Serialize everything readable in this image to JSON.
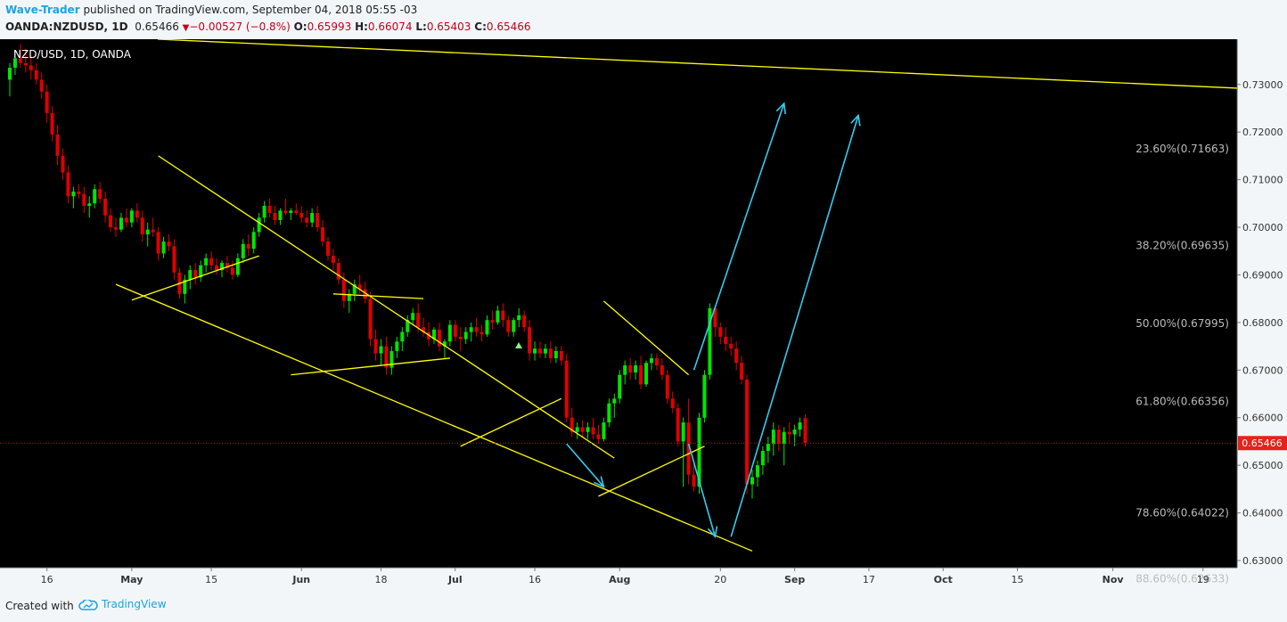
{
  "header": {
    "author": "Wave-Trader",
    "published": " published on TradingView.com, September 04, 2018 05:55 -03",
    "symbol": "OANDA:NZDUSD, 1D",
    "price": "0.65466",
    "change": "−0.00527 (−0.8%)",
    "o_label": "O:",
    "o_value": "0.65993",
    "h_label": "H:",
    "h_value": "0.66074",
    "l_label": "L:",
    "l_value": "0.65403",
    "c_label": "C:",
    "c_value": "0.65466"
  },
  "footer": {
    "created": "Created with",
    "brand": "TradingView"
  },
  "colors": {
    "background": "#000000",
    "up": "#00e600",
    "down": "#e00000",
    "trendline": "#ffff00",
    "arrow": "#33ccee",
    "price_line": "#e00000",
    "axis_bg": "#f3f6f8"
  },
  "chart_data": {
    "type": "candlestick",
    "title": "NZD/USD, 1D, OANDA",
    "last_price_label": "0.65466",
    "last_price": 0.65466,
    "ylim": [
      0.6285,
      0.7395
    ],
    "yticks": [
      {
        "label": "0.73000",
        "value": 0.73
      },
      {
        "label": "0.72000",
        "value": 0.72
      },
      {
        "label": "0.71000",
        "value": 0.71
      },
      {
        "label": "0.70000",
        "value": 0.7
      },
      {
        "label": "0.69000",
        "value": 0.69
      },
      {
        "label": "0.68000",
        "value": 0.68
      },
      {
        "label": "0.67000",
        "value": 0.67
      },
      {
        "label": "0.66000",
        "value": 0.66
      },
      {
        "label": "0.65000",
        "value": 0.65
      },
      {
        "label": "0.64000",
        "value": 0.64
      },
      {
        "label": "0.63000",
        "value": 0.63
      }
    ],
    "fib_levels": [
      {
        "label": "23.60%(0.71663)",
        "value": 0.71663
      },
      {
        "label": "38.20%(0.69635)",
        "value": 0.69635
      },
      {
        "label": "50.00%(0.67995)",
        "value": 0.67995
      },
      {
        "label": "61.80%(0.66356)",
        "value": 0.66356
      },
      {
        "label": "78.60%(0.64022)",
        "value": 0.64022
      },
      {
        "label": "88.60%(0.62633)",
        "value": 0.62633
      }
    ],
    "xticks": [
      {
        "label": "16",
        "bar": 7
      },
      {
        "label": "May",
        "bar": 23
      },
      {
        "label": "15",
        "bar": 38
      },
      {
        "label": "Jun",
        "bar": 55
      },
      {
        "label": "18",
        "bar": 70
      },
      {
        "label": "Jul",
        "bar": 84
      },
      {
        "label": "16",
        "bar": 99
      },
      {
        "label": "Aug",
        "bar": 115
      },
      {
        "label": "20",
        "bar": 134
      },
      {
        "label": "Sep",
        "bar": 148
      },
      {
        "label": "17",
        "bar": 162
      },
      {
        "label": "Oct",
        "bar": 176
      },
      {
        "label": "15",
        "bar": 190
      },
      {
        "label": "Nov",
        "bar": 208
      },
      {
        "label": "19",
        "bar": 225
      }
    ],
    "candles": [
      [
        0.731,
        0.7345,
        0.7275,
        0.7335
      ],
      [
        0.7335,
        0.737,
        0.732,
        0.7355
      ],
      [
        0.7355,
        0.7385,
        0.7335,
        0.7345
      ],
      [
        0.7345,
        0.7375,
        0.7325,
        0.734
      ],
      [
        0.734,
        0.736,
        0.731,
        0.733
      ],
      [
        0.733,
        0.7345,
        0.73,
        0.731
      ],
      [
        0.731,
        0.7325,
        0.727,
        0.7285
      ],
      [
        0.7285,
        0.73,
        0.722,
        0.724
      ],
      [
        0.724,
        0.7255,
        0.718,
        0.7195
      ],
      [
        0.7195,
        0.7215,
        0.713,
        0.715
      ],
      [
        0.715,
        0.7165,
        0.71,
        0.7115
      ],
      [
        0.7115,
        0.713,
        0.705,
        0.7065
      ],
      [
        0.7065,
        0.7085,
        0.704,
        0.7075
      ],
      [
        0.7075,
        0.709,
        0.706,
        0.707
      ],
      [
        0.707,
        0.7085,
        0.703,
        0.7045
      ],
      [
        0.7045,
        0.7065,
        0.702,
        0.705
      ],
      [
        0.705,
        0.709,
        0.704,
        0.708
      ],
      [
        0.708,
        0.7095,
        0.705,
        0.706
      ],
      [
        0.706,
        0.7075,
        0.701,
        0.7025
      ],
      [
        0.7025,
        0.704,
        0.699,
        0.7
      ],
      [
        0.7,
        0.702,
        0.698,
        0.6995
      ],
      [
        0.6995,
        0.703,
        0.699,
        0.702
      ],
      [
        0.702,
        0.704,
        0.7,
        0.701
      ],
      [
        0.701,
        0.704,
        0.7,
        0.7035
      ],
      [
        0.7035,
        0.705,
        0.701,
        0.702
      ],
      [
        0.702,
        0.7035,
        0.697,
        0.6985
      ],
      [
        0.6985,
        0.701,
        0.696,
        0.6995
      ],
      [
        0.6995,
        0.702,
        0.698,
        0.699
      ],
      [
        0.699,
        0.7,
        0.693,
        0.6945
      ],
      [
        0.6945,
        0.698,
        0.6935,
        0.697
      ],
      [
        0.697,
        0.6985,
        0.695,
        0.696
      ],
      [
        0.696,
        0.6975,
        0.689,
        0.6905
      ],
      [
        0.6905,
        0.6915,
        0.685,
        0.686
      ],
      [
        0.686,
        0.69,
        0.684,
        0.689
      ],
      [
        0.689,
        0.692,
        0.687,
        0.691
      ],
      [
        0.691,
        0.6925,
        0.688,
        0.6895
      ],
      [
        0.6895,
        0.693,
        0.6885,
        0.692
      ],
      [
        0.692,
        0.6945,
        0.6905,
        0.6935
      ],
      [
        0.6935,
        0.695,
        0.691,
        0.692
      ],
      [
        0.692,
        0.6935,
        0.69,
        0.691
      ],
      [
        0.691,
        0.693,
        0.6895,
        0.6925
      ],
      [
        0.6925,
        0.694,
        0.6905,
        0.6915
      ],
      [
        0.6915,
        0.693,
        0.689,
        0.69
      ],
      [
        0.69,
        0.6945,
        0.6895,
        0.6935
      ],
      [
        0.6935,
        0.6975,
        0.6925,
        0.6965
      ],
      [
        0.6965,
        0.6985,
        0.694,
        0.6955
      ],
      [
        0.6955,
        0.7,
        0.6945,
        0.699
      ],
      [
        0.699,
        0.703,
        0.698,
        0.702
      ],
      [
        0.702,
        0.7055,
        0.701,
        0.7045
      ],
      [
        0.7045,
        0.706,
        0.702,
        0.703
      ],
      [
        0.703,
        0.7045,
        0.7005,
        0.7015
      ],
      [
        0.7015,
        0.704,
        0.7005,
        0.7035
      ],
      [
        0.7035,
        0.706,
        0.7025,
        0.703
      ],
      [
        0.703,
        0.704,
        0.7015,
        0.7035
      ],
      [
        0.7035,
        0.705,
        0.7025,
        0.703
      ],
      [
        0.703,
        0.7045,
        0.701,
        0.702
      ],
      [
        0.702,
        0.7035,
        0.7,
        0.701
      ],
      [
        0.701,
        0.704,
        0.7,
        0.703
      ],
      [
        0.703,
        0.7045,
        0.699,
        0.7
      ],
      [
        0.7,
        0.7015,
        0.696,
        0.697
      ],
      [
        0.697,
        0.698,
        0.693,
        0.694
      ],
      [
        0.694,
        0.6955,
        0.691,
        0.6925
      ],
      [
        0.6925,
        0.6935,
        0.688,
        0.689
      ],
      [
        0.689,
        0.6905,
        0.683,
        0.6845
      ],
      [
        0.6845,
        0.687,
        0.682,
        0.686
      ],
      [
        0.686,
        0.689,
        0.6845,
        0.688
      ],
      [
        0.688,
        0.69,
        0.686,
        0.687
      ],
      [
        0.687,
        0.6885,
        0.684,
        0.685
      ],
      [
        0.685,
        0.6865,
        0.675,
        0.6765
      ],
      [
        0.6765,
        0.6785,
        0.672,
        0.6735
      ],
      [
        0.6735,
        0.6765,
        0.671,
        0.675
      ],
      [
        0.675,
        0.677,
        0.669,
        0.6705
      ],
      [
        0.6705,
        0.675,
        0.669,
        0.674
      ],
      [
        0.674,
        0.677,
        0.6725,
        0.676
      ],
      [
        0.676,
        0.679,
        0.674,
        0.678
      ],
      [
        0.678,
        0.6815,
        0.677,
        0.6805
      ],
      [
        0.6805,
        0.683,
        0.6795,
        0.682
      ],
      [
        0.682,
        0.684,
        0.678,
        0.679
      ],
      [
        0.679,
        0.681,
        0.677,
        0.678
      ],
      [
        0.678,
        0.68,
        0.675,
        0.6765
      ],
      [
        0.6765,
        0.679,
        0.6755,
        0.6785
      ],
      [
        0.6785,
        0.68,
        0.674,
        0.675
      ],
      [
        0.675,
        0.6765,
        0.6725,
        0.676
      ],
      [
        0.676,
        0.6805,
        0.675,
        0.6795
      ],
      [
        0.6795,
        0.6805,
        0.676,
        0.677
      ],
      [
        0.677,
        0.679,
        0.674,
        0.6765
      ],
      [
        0.6765,
        0.679,
        0.6755,
        0.678
      ],
      [
        0.678,
        0.68,
        0.676,
        0.679
      ],
      [
        0.679,
        0.681,
        0.677,
        0.678
      ],
      [
        0.678,
        0.6795,
        0.676,
        0.6775
      ],
      [
        0.6775,
        0.6815,
        0.677,
        0.6805
      ],
      [
        0.6805,
        0.6825,
        0.6785,
        0.68
      ],
      [
        0.68,
        0.6835,
        0.6795,
        0.6825
      ],
      [
        0.6825,
        0.684,
        0.679,
        0.6805
      ],
      [
        0.6805,
        0.6815,
        0.677,
        0.678
      ],
      [
        0.678,
        0.681,
        0.677,
        0.6805
      ],
      [
        0.6805,
        0.683,
        0.679,
        0.6815
      ],
      [
        0.6815,
        0.6825,
        0.678,
        0.679
      ],
      [
        0.679,
        0.6805,
        0.672,
        0.6735
      ],
      [
        0.6735,
        0.676,
        0.672,
        0.6745
      ],
      [
        0.6745,
        0.676,
        0.6725,
        0.6735
      ],
      [
        0.6735,
        0.6755,
        0.6725,
        0.6745
      ],
      [
        0.6745,
        0.676,
        0.6715,
        0.6725
      ],
      [
        0.6725,
        0.675,
        0.6715,
        0.674
      ],
      [
        0.674,
        0.675,
        0.671,
        0.672
      ],
      [
        0.672,
        0.6735,
        0.659,
        0.66
      ],
      [
        0.66,
        0.662,
        0.656,
        0.657
      ],
      [
        0.657,
        0.659,
        0.6555,
        0.658
      ],
      [
        0.658,
        0.6595,
        0.656,
        0.657
      ],
      [
        0.657,
        0.659,
        0.6555,
        0.658
      ],
      [
        0.658,
        0.66,
        0.6555,
        0.6565
      ],
      [
        0.6565,
        0.6585,
        0.6545,
        0.6555
      ],
      [
        0.6555,
        0.66,
        0.655,
        0.659
      ],
      [
        0.659,
        0.664,
        0.658,
        0.663
      ],
      [
        0.663,
        0.665,
        0.66,
        0.664
      ],
      [
        0.664,
        0.67,
        0.663,
        0.669
      ],
      [
        0.669,
        0.672,
        0.667,
        0.671
      ],
      [
        0.671,
        0.6725,
        0.668,
        0.6695
      ],
      [
        0.6695,
        0.672,
        0.668,
        0.671
      ],
      [
        0.671,
        0.673,
        0.666,
        0.667
      ],
      [
        0.667,
        0.672,
        0.6665,
        0.6715
      ],
      [
        0.6715,
        0.6735,
        0.67,
        0.6725
      ],
      [
        0.6725,
        0.6735,
        0.67,
        0.671
      ],
      [
        0.671,
        0.6725,
        0.668,
        0.669
      ],
      [
        0.669,
        0.67,
        0.663,
        0.664
      ],
      [
        0.664,
        0.6655,
        0.661,
        0.662
      ],
      [
        0.662,
        0.663,
        0.654,
        0.655
      ],
      [
        0.655,
        0.66,
        0.6455,
        0.659
      ],
      [
        0.659,
        0.664,
        0.646,
        0.648
      ],
      [
        0.648,
        0.651,
        0.6445,
        0.6455
      ],
      [
        0.6455,
        0.661,
        0.644,
        0.66
      ],
      [
        0.66,
        0.67,
        0.659,
        0.669
      ],
      [
        0.669,
        0.684,
        0.668,
        0.683
      ],
      [
        0.683,
        0.6835,
        0.677,
        0.679
      ],
      [
        0.679,
        0.68,
        0.6755,
        0.677
      ],
      [
        0.677,
        0.679,
        0.674,
        0.6755
      ],
      [
        0.6755,
        0.677,
        0.673,
        0.6745
      ],
      [
        0.6745,
        0.676,
        0.67,
        0.6715
      ],
      [
        0.6715,
        0.673,
        0.667,
        0.668
      ],
      [
        0.668,
        0.669,
        0.644,
        0.646
      ],
      [
        0.646,
        0.649,
        0.643,
        0.6475
      ],
      [
        0.6475,
        0.651,
        0.6455,
        0.65
      ],
      [
        0.65,
        0.654,
        0.648,
        0.653
      ],
      [
        0.653,
        0.656,
        0.6505,
        0.6545
      ],
      [
        0.6545,
        0.659,
        0.652,
        0.6575
      ],
      [
        0.6575,
        0.6585,
        0.653,
        0.6545
      ],
      [
        0.6545,
        0.658,
        0.65,
        0.657
      ],
      [
        0.657,
        0.659,
        0.6545,
        0.6565
      ],
      [
        0.6565,
        0.6585,
        0.654,
        0.6575
      ],
      [
        0.6575,
        0.66,
        0.656,
        0.659
      ],
      [
        0.6599,
        0.6607,
        0.654,
        0.6547
      ]
    ],
    "trendlines": [
      {
        "from": [
          18,
          0.74
        ],
        "to": [
          305,
          0.7255
        ]
      },
      {
        "from": [
          28,
          0.715
        ],
        "to": [
          114,
          0.6515
        ]
      },
      {
        "from": [
          20,
          0.688
        ],
        "to": [
          140,
          0.632
        ]
      },
      {
        "from": [
          23,
          0.6847
        ],
        "to": [
          47,
          0.694
        ]
      },
      {
        "from": [
          53,
          0.669
        ],
        "to": [
          83,
          0.6725
        ]
      },
      {
        "from": [
          61,
          0.686
        ],
        "to": [
          78,
          0.685
        ]
      },
      {
        "from": [
          85,
          0.654
        ],
        "to": [
          104,
          0.664
        ]
      },
      {
        "from": [
          111,
          0.6435
        ],
        "to": [
          131,
          0.654
        ]
      },
      {
        "from": [
          112,
          0.6845
        ],
        "to": [
          128,
          0.669
        ]
      }
    ],
    "arrows": [
      {
        "from": [
          105,
          0.6545
        ],
        "to": [
          112,
          0.6455
        ]
      },
      {
        "from": [
          128,
          0.6545
        ],
        "to": [
          133,
          0.635
        ]
      },
      {
        "from": [
          129,
          0.67
        ],
        "to": [
          146,
          0.726
        ]
      },
      {
        "from": [
          136,
          0.635
        ],
        "to": [
          160,
          0.7235
        ]
      }
    ]
  }
}
